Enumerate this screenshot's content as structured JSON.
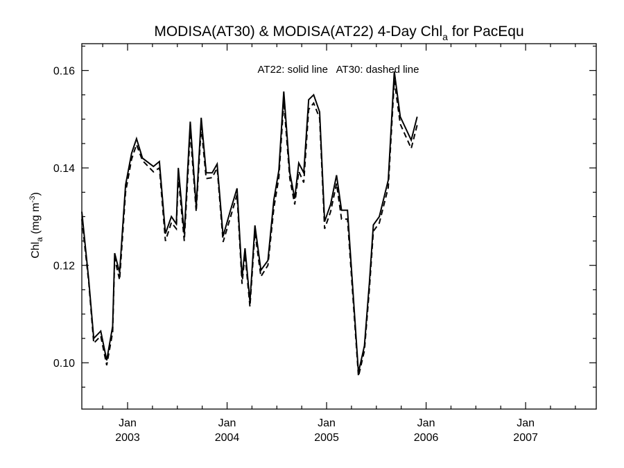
{
  "chart_data": {
    "type": "line",
    "title": "MODISA(AT30) & MODISA(AT22) 4-Day Chl",
    "title_subscript": "a",
    "title_suffix": " for PacEqu",
    "ylabel": "Chl",
    "ylabel_subscript": "a",
    "ylabel_units": " (mg m",
    "ylabel_units_sup": "-3",
    "ylabel_units_close": ")",
    "annotation": "AT22: solid line   AT30: dashed line",
    "xlim": [
      2002.54,
      2007.71
    ],
    "ylim": [
      0.0905,
      0.1655
    ],
    "yticks": [
      0.1,
      0.12,
      0.14,
      0.16
    ],
    "ytick_labels": [
      "0.10",
      "0.12",
      "0.14",
      "0.16"
    ],
    "xticks": [
      {
        "x": 2003.0,
        "month": "Jan",
        "year": "2003"
      },
      {
        "x": 2004.0,
        "month": "Jan",
        "year": "2004"
      },
      {
        "x": 2005.0,
        "month": "Jan",
        "year": "2005"
      },
      {
        "x": 2006.0,
        "month": "Jan",
        "year": "2006"
      },
      {
        "x": 2007.0,
        "month": "Jan",
        "year": "2007"
      }
    ],
    "series": [
      {
        "name": "AT22",
        "style": "solid",
        "color": "#000000",
        "points": [
          [
            2002.54,
            0.131
          ],
          [
            2002.61,
            0.117
          ],
          [
            2002.66,
            0.105
          ],
          [
            2002.73,
            0.1065
          ],
          [
            2002.79,
            0.1005
          ],
          [
            2002.85,
            0.1075
          ],
          [
            2002.87,
            0.1225
          ],
          [
            2002.92,
            0.1185
          ],
          [
            2002.98,
            0.1365
          ],
          [
            2003.04,
            0.143
          ],
          [
            2003.09,
            0.146
          ],
          [
            2003.15,
            0.142
          ],
          [
            2003.26,
            0.1403
          ],
          [
            2003.32,
            0.1413
          ],
          [
            2003.38,
            0.1265
          ],
          [
            2003.44,
            0.13
          ],
          [
            2003.49,
            0.1285
          ],
          [
            2003.51,
            0.14
          ],
          [
            2003.57,
            0.1265
          ],
          [
            2003.63,
            0.1495
          ],
          [
            2003.69,
            0.132
          ],
          [
            2003.74,
            0.1503
          ],
          [
            2003.79,
            0.139
          ],
          [
            2003.85,
            0.139
          ],
          [
            2003.9,
            0.1408
          ],
          [
            2003.96,
            0.126
          ],
          [
            2004.03,
            0.131
          ],
          [
            2004.1,
            0.1358
          ],
          [
            2004.15,
            0.1175
          ],
          [
            2004.18,
            0.1235
          ],
          [
            2004.23,
            0.1125
          ],
          [
            2004.28,
            0.1282
          ],
          [
            2004.34,
            0.119
          ],
          [
            2004.41,
            0.121
          ],
          [
            2004.47,
            0.1335
          ],
          [
            2004.52,
            0.1395
          ],
          [
            2004.57,
            0.1557
          ],
          [
            2004.63,
            0.139
          ],
          [
            2004.68,
            0.1337
          ],
          [
            2004.72,
            0.141
          ],
          [
            2004.77,
            0.139
          ],
          [
            2004.82,
            0.154
          ],
          [
            2004.87,
            0.155
          ],
          [
            2004.93,
            0.1515
          ],
          [
            2004.98,
            0.129
          ],
          [
            2005.04,
            0.1325
          ],
          [
            2005.1,
            0.1385
          ],
          [
            2005.15,
            0.1313
          ],
          [
            2005.21,
            0.1313
          ],
          [
            2005.32,
            0.098
          ],
          [
            2005.38,
            0.1035
          ],
          [
            2005.43,
            0.1165
          ],
          [
            2005.47,
            0.1283
          ],
          [
            2005.53,
            0.13
          ],
          [
            2005.62,
            0.1375
          ],
          [
            2005.68,
            0.1598
          ],
          [
            2005.74,
            0.1505
          ],
          [
            2005.85,
            0.1457
          ],
          [
            2005.91,
            0.1505
          ]
        ]
      },
      {
        "name": "AT30",
        "style": "dashed",
        "color": "#000000",
        "points": [
          [
            2002.54,
            0.1295
          ],
          [
            2002.61,
            0.1165
          ],
          [
            2002.66,
            0.104
          ],
          [
            2002.73,
            0.1055
          ],
          [
            2002.79,
            0.0995
          ],
          [
            2002.85,
            0.1063
          ],
          [
            2002.87,
            0.1215
          ],
          [
            2002.92,
            0.117
          ],
          [
            2002.98,
            0.135
          ],
          [
            2003.04,
            0.1418
          ],
          [
            2003.09,
            0.1448
          ],
          [
            2003.15,
            0.1415
          ],
          [
            2003.26,
            0.1392
          ],
          [
            2003.32,
            0.14
          ],
          [
            2003.38,
            0.125
          ],
          [
            2003.44,
            0.1288
          ],
          [
            2003.49,
            0.1275
          ],
          [
            2003.51,
            0.1383
          ],
          [
            2003.57,
            0.125
          ],
          [
            2003.63,
            0.1475
          ],
          [
            2003.69,
            0.131
          ],
          [
            2003.74,
            0.1485
          ],
          [
            2003.79,
            0.1378
          ],
          [
            2003.85,
            0.138
          ],
          [
            2003.9,
            0.14
          ],
          [
            2003.96,
            0.1248
          ],
          [
            2004.03,
            0.1296
          ],
          [
            2004.1,
            0.1345
          ],
          [
            2004.15,
            0.1162
          ],
          [
            2004.18,
            0.1223
          ],
          [
            2004.23,
            0.1115
          ],
          [
            2004.28,
            0.1268
          ],
          [
            2004.34,
            0.1177
          ],
          [
            2004.41,
            0.12
          ],
          [
            2004.47,
            0.1318
          ],
          [
            2004.52,
            0.138
          ],
          [
            2004.57,
            0.1537
          ],
          [
            2004.63,
            0.1378
          ],
          [
            2004.68,
            0.1325
          ],
          [
            2004.72,
            0.1393
          ],
          [
            2004.77,
            0.137
          ],
          [
            2004.82,
            0.152
          ],
          [
            2004.87,
            0.1533
          ],
          [
            2004.93,
            0.1502
          ],
          [
            2004.98,
            0.1275
          ],
          [
            2005.04,
            0.131
          ],
          [
            2005.1,
            0.1368
          ],
          [
            2005.15,
            0.1295
          ],
          [
            2005.21,
            0.1295
          ],
          [
            2005.32,
            0.0972
          ],
          [
            2005.38,
            0.1025
          ],
          [
            2005.43,
            0.1152
          ],
          [
            2005.47,
            0.127
          ],
          [
            2005.53,
            0.1287
          ],
          [
            2005.62,
            0.136
          ],
          [
            2005.68,
            0.158
          ],
          [
            2005.74,
            0.149
          ],
          [
            2005.85,
            0.144
          ],
          [
            2005.91,
            0.1488
          ]
        ]
      }
    ]
  }
}
